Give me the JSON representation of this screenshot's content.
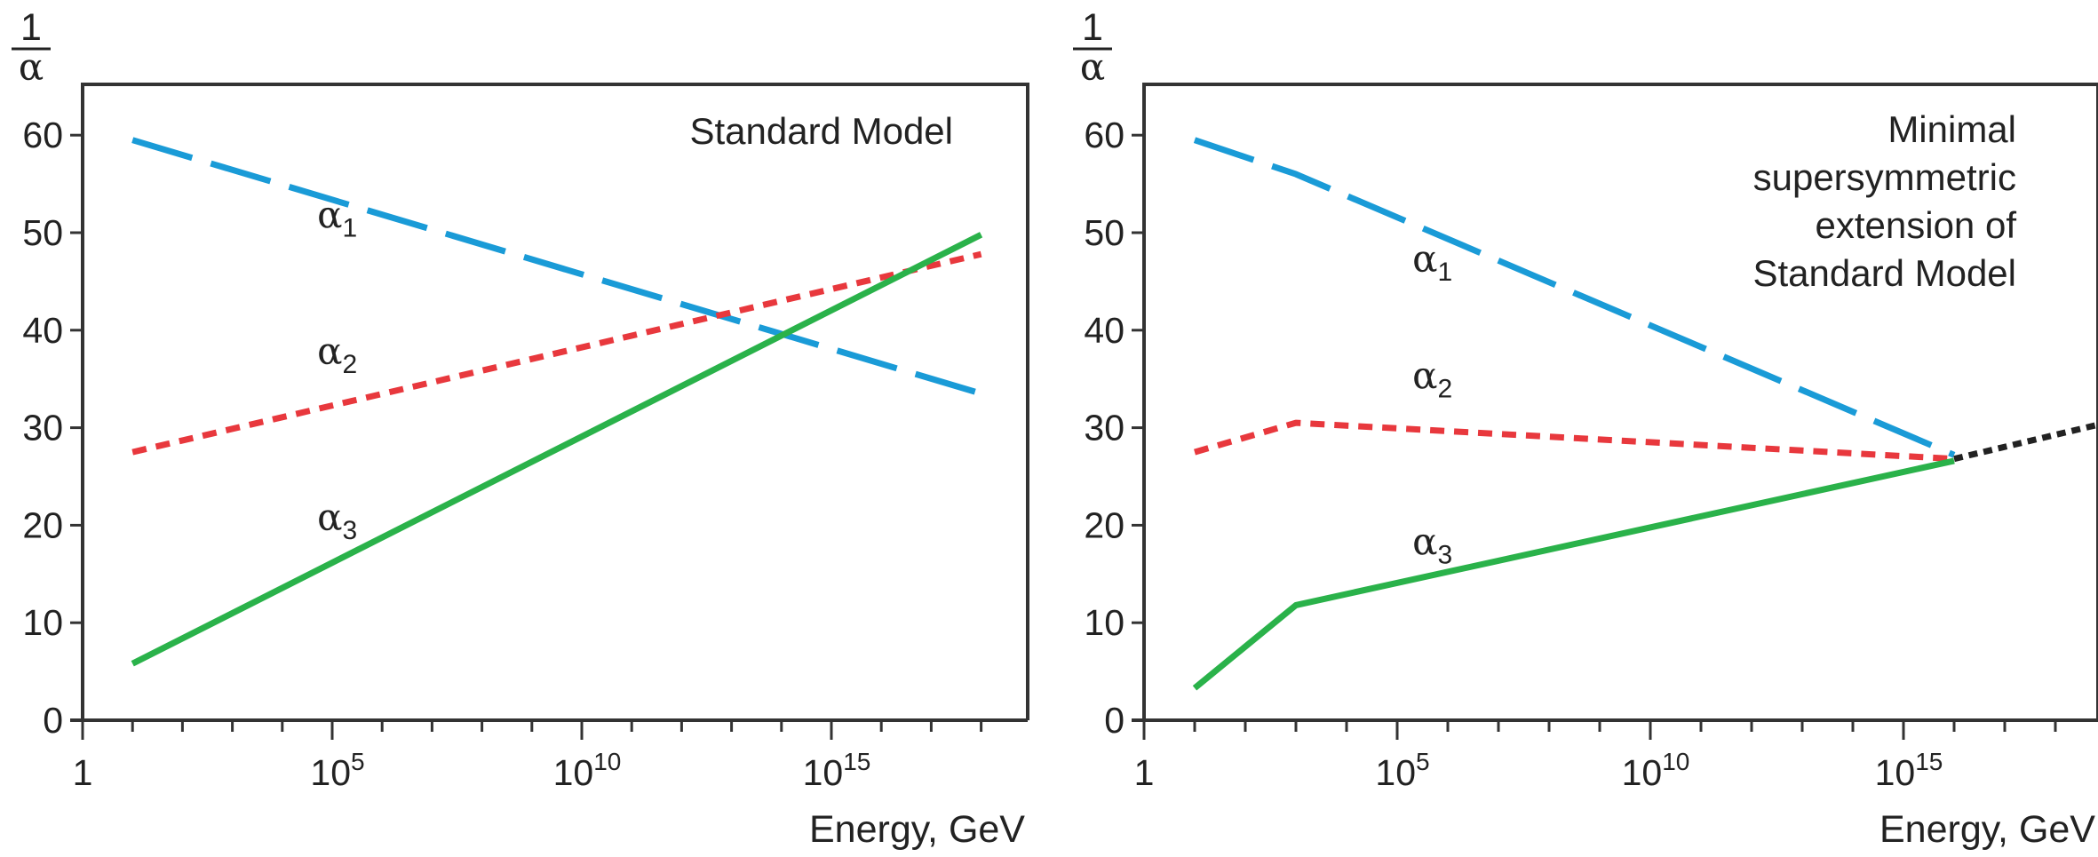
{
  "chart_data": [
    {
      "type": "line",
      "title": "Standard Model",
      "xlabel": "Energy, GeV",
      "ylabel_numerator": "1",
      "ylabel_denominator": "α",
      "x_scale": "log10",
      "xlim": [
        1,
        1e+19
      ],
      "ylim": [
        0,
        63
      ],
      "x_ticks": [
        {
          "value": 1,
          "base": "1",
          "exp": ""
        },
        {
          "value": 100000.0,
          "base": "10",
          "exp": "5"
        },
        {
          "value": 10000000000.0,
          "base": "10",
          "exp": "10"
        },
        {
          "value": 1000000000000000.0,
          "base": "10",
          "exp": "15"
        }
      ],
      "y_ticks": [
        "0",
        "10",
        "20",
        "30",
        "40",
        "50",
        "60"
      ],
      "series": [
        {
          "name": "α1",
          "sub": "1",
          "color": "#1a9bd7",
          "style": "long-dash",
          "x": [
            10.0,
            1e+18
          ],
          "y": [
            59.5,
            33.5
          ],
          "label_at": [
            50000.0,
            50.5
          ]
        },
        {
          "name": "α2",
          "sub": "2",
          "color": "#e8383d",
          "style": "short-dash",
          "x": [
            10.0,
            1e+18
          ],
          "y": [
            27.5,
            47.8
          ],
          "label_at": [
            50000.0,
            36.5
          ]
        },
        {
          "name": "α3",
          "sub": "3",
          "color": "#2ab24a",
          "style": "solid",
          "x": [
            10.0,
            1e+18
          ],
          "y": [
            5.8,
            49.8
          ],
          "label_at": [
            50000.0,
            19.5
          ]
        }
      ]
    },
    {
      "type": "line",
      "title": "Minimal supersymmetric extension of Standard Model",
      "title_lines": [
        "Minimal",
        "supersymmetric",
        "extension of",
        "Standard Model"
      ],
      "xlabel": "Energy, GeV",
      "ylabel_numerator": "1",
      "ylabel_denominator": "α",
      "x_scale": "log10",
      "xlim": [
        1,
        1e+19
      ],
      "ylim": [
        0,
        63
      ],
      "x_ticks": [
        {
          "value": 1,
          "base": "1",
          "exp": ""
        },
        {
          "value": 100000.0,
          "base": "10",
          "exp": "5"
        },
        {
          "value": 10000000000.0,
          "base": "10",
          "exp": "10"
        },
        {
          "value": 1000000000000000.0,
          "base": "10",
          "exp": "15"
        }
      ],
      "y_ticks": [
        "0",
        "10",
        "20",
        "30",
        "40",
        "50",
        "60"
      ],
      "series": [
        {
          "name": "α1",
          "sub": "1",
          "color": "#1a9bd7",
          "style": "long-dash",
          "x": [
            10.0,
            1000.0,
            1e+16
          ],
          "y": [
            59.5,
            56.0,
            27.2
          ],
          "label_at": [
            200000.0,
            46.0
          ]
        },
        {
          "name": "α2",
          "sub": "2",
          "color": "#e8383d",
          "style": "short-dash",
          "x": [
            10.0,
            1000.0,
            1e+16
          ],
          "y": [
            27.5,
            30.5,
            26.8
          ],
          "label_at": [
            200000.0,
            34.0
          ]
        },
        {
          "name": "α3",
          "sub": "3",
          "color": "#2ab24a",
          "style": "solid",
          "x": [
            10.0,
            1000.0,
            1e+16
          ],
          "y": [
            3.3,
            11.8,
            26.6
          ],
          "label_at": [
            200000.0,
            17.0
          ]
        },
        {
          "name": "",
          "sub": "",
          "color": "#222222",
          "style": "dotted",
          "x": [
            1e+16,
            1e+19
          ],
          "y": [
            26.8,
            30.5
          ],
          "label_at": null
        }
      ]
    }
  ]
}
